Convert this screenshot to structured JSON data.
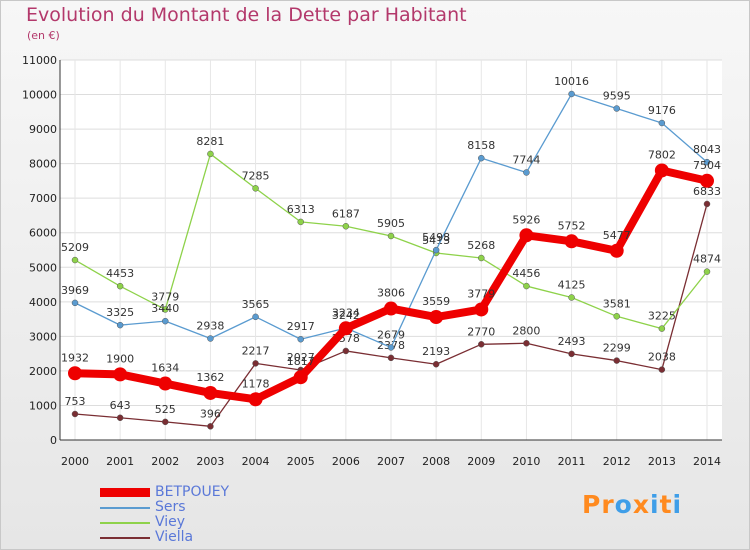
{
  "title": "Evolution du Montant de la Dette par Habitant",
  "unit_label": "(en €)",
  "logo": {
    "text": "Proxiti",
    "letters": [
      "P",
      "r",
      "o",
      "x",
      "i",
      "t",
      "i"
    ],
    "colors": [
      "#ff8a1f",
      "#ff8a1f",
      "#3f9ee8",
      "#ff8a1f",
      "#3f9ee8",
      "#ff8a1f",
      "#3f9ee8"
    ]
  },
  "chart_data": {
    "type": "line",
    "x": [
      "2000",
      "2001",
      "2002",
      "2003",
      "2004",
      "2005",
      "2006",
      "2007",
      "2008",
      "2009",
      "2010",
      "2011",
      "2012",
      "2013",
      "2014"
    ],
    "ylim": [
      0,
      11000
    ],
    "yticks": [
      "0",
      "1000",
      "2000",
      "3000",
      "4000",
      "5000",
      "6000",
      "7000",
      "8000",
      "9000",
      "10000",
      "11000"
    ],
    "grid": true,
    "legend_position": "bottom-left",
    "series": [
      {
        "name": "Viella",
        "color": "#7a2e33",
        "values": [
          753,
          643,
          525,
          396,
          2217,
          2027,
          2578,
          2378,
          2193,
          2770,
          2800,
          2493,
          2299,
          2038,
          6833
        ],
        "labels": [
          "753",
          "643",
          "525",
          "396",
          "2217",
          "2027",
          "2578",
          "2378",
          "2193",
          "2770",
          "2800",
          "2493",
          "2299",
          "2038",
          "6833"
        ]
      },
      {
        "name": "Viey",
        "color": "#8ed24a",
        "values": [
          5209,
          4453,
          3779,
          8281,
          7285,
          6313,
          6187,
          5905,
          5413,
          5268,
          4456,
          4125,
          3581,
          3225,
          4874
        ],
        "labels": [
          "5209",
          "4453",
          "3779",
          "8281",
          "7285",
          "6313",
          "6187",
          "5905",
          "5413",
          "5268",
          "4456",
          "4125",
          "3581",
          "3225",
          "4874"
        ]
      },
      {
        "name": "Sers",
        "color": "#5a9bd0",
        "values": [
          3969,
          3325,
          3440,
          2938,
          3565,
          2917,
          3242,
          2679,
          5498,
          8158,
          7744,
          10016,
          9595,
          9176,
          8043
        ],
        "labels": [
          "3969",
          "3325",
          "3440",
          "2938",
          "3565",
          "2917",
          "3242",
          "2679",
          "5498",
          "8158",
          "7744",
          "10016",
          "9595",
          "9176",
          "8043"
        ]
      },
      {
        "name": "BETPOUEY",
        "color": "#ee0000",
        "values": [
          1932,
          1900,
          1634,
          1362,
          1178,
          1817,
          3234,
          3806,
          3559,
          3779,
          5926,
          5752,
          5477,
          7802,
          7504
        ],
        "labels": [
          "1932",
          "1900",
          "1634",
          "1362",
          "1178",
          "1817",
          "3234",
          "3806",
          "3559",
          "3779",
          "5926",
          "5752",
          "5477",
          "7802",
          "7504"
        ]
      }
    ],
    "legend_order": [
      "BETPOUEY",
      "Sers",
      "Viey",
      "Viella"
    ]
  }
}
